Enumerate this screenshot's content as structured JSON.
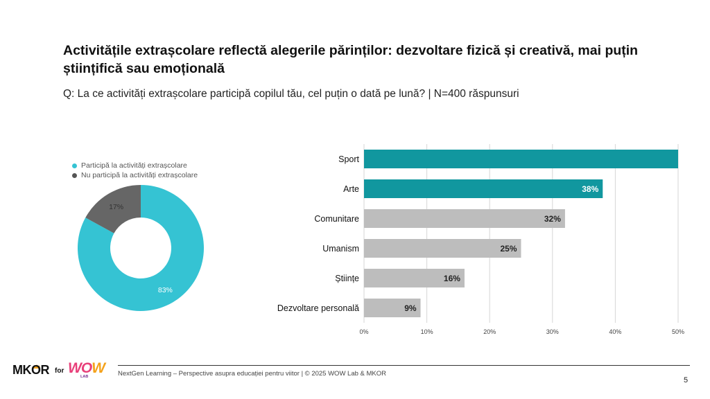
{
  "title": "Activitățile extrașcolare reflectă alegerile părinților: dezvoltare fizică și creativă, mai puțin științifică sau emoțională",
  "subtitle": "Q: La ce activități extrașcolare participă copilul tău, cel puțin o dată pe lună? | N=400 răspunsuri",
  "footer": {
    "text": "NextGen Learning – Perspective asupra educației pentru viitor | © 2025 WOW Lab & MKOR",
    "page_number": "5",
    "logo_mkor": "MKOR",
    "logo_for": "for",
    "logo_wow_1": "WO",
    "logo_wow_2": "W",
    "logo_lab": "LAB"
  },
  "colors": {
    "teal": "#35c3d3",
    "dark_teal": "#11979f",
    "gray_dark": "#666666",
    "gray_bar": "#bdbdbd",
    "grid": "#d6d6d6"
  },
  "chart_data": [
    {
      "type": "pie",
      "variant": "donut",
      "legend_position": "top-left",
      "legend": [
        "Participă la activități extrașcolare",
        "Nu participă la activități extrașcolare"
      ],
      "slices": [
        {
          "name": "Participă la activități extrașcolare",
          "value": 83,
          "label": "83%",
          "color": "#35c3d3"
        },
        {
          "name": "Nu participă la activități extrașcolare",
          "value": 17,
          "label": "17%",
          "color": "#666666"
        }
      ]
    },
    {
      "type": "bar",
      "orientation": "horizontal",
      "categories": [
        "Sport",
        "Arte",
        "Comunitare",
        "Umanism",
        "Științe",
        "Dezvoltare personală"
      ],
      "values": [
        50,
        38,
        32,
        25,
        16,
        9
      ],
      "labels": [
        "",
        "38%",
        "32%",
        "25%",
        "16%",
        "9%"
      ],
      "highlight": [
        true,
        true,
        false,
        false,
        false,
        false
      ],
      "xlim": [
        0,
        50
      ],
      "xticks": [
        "0%",
        "10%",
        "20%",
        "30%",
        "40%",
        "50%"
      ],
      "grid": true
    }
  ]
}
